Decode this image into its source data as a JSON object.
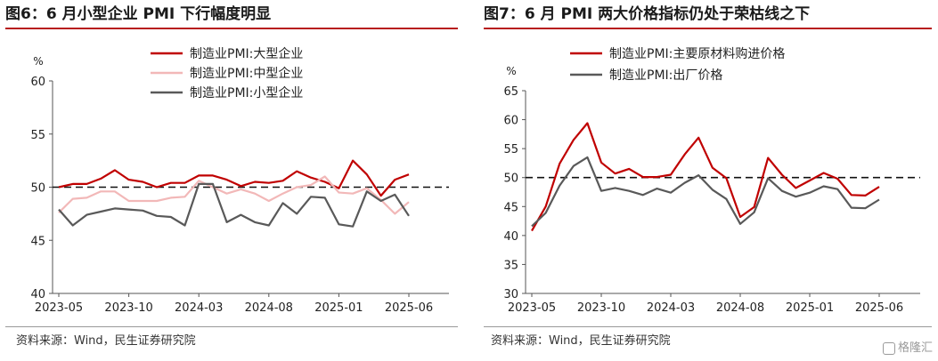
{
  "charts": [
    {
      "title": "图6：6 月小型企业 PMI 下行幅度明显",
      "source": "资料来源：Wind，民生证券研究院"
    },
    {
      "title": "图7：6 月 PMI 两大价格指标仍处于荣枯线之下",
      "source": "资料来源：Wind，民生证券研究院"
    }
  ],
  "watermark": "格隆汇",
  "colors": {
    "red": "#c00000",
    "pink": "#f2b8b8",
    "gray": "#595959",
    "title_rule": "#b71c1c"
  },
  "chart_data": [
    {
      "type": "line",
      "title": "6 月小型企业 PMI 下行幅度明显",
      "ylabel": "%",
      "ylim": [
        40,
        60
      ],
      "yticks": [
        40,
        45,
        50,
        55,
        60
      ],
      "xticklabels": [
        "2023-05",
        "2023-10",
        "2024-03",
        "2024-08",
        "2025-01",
        "2025-06"
      ],
      "x": [
        "2023-05",
        "2023-06",
        "2023-07",
        "2023-08",
        "2023-09",
        "2023-10",
        "2023-11",
        "2023-12",
        "2024-01",
        "2024-02",
        "2024-03",
        "2024-04",
        "2024-05",
        "2024-06",
        "2024-07",
        "2024-08",
        "2024-09",
        "2024-10",
        "2024-11",
        "2024-12",
        "2025-01",
        "2025-02",
        "2025-03",
        "2025-04",
        "2025-05",
        "2025-06"
      ],
      "reference_line": 50,
      "legend_position": "top",
      "series": [
        {
          "name": "制造业PMI:大型企业",
          "color": "#c00000",
          "values": [
            50.0,
            50.3,
            50.3,
            50.8,
            51.6,
            50.7,
            50.5,
            50.0,
            50.4,
            50.4,
            51.1,
            51.1,
            50.7,
            50.1,
            50.5,
            50.4,
            50.6,
            51.5,
            50.9,
            50.5,
            49.9,
            52.5,
            51.2,
            49.2,
            50.7,
            51.2
          ]
        },
        {
          "name": "制造业PMI:中型企业",
          "color": "#f2b8b8",
          "values": [
            47.6,
            48.9,
            49.0,
            49.6,
            49.6,
            48.7,
            48.7,
            48.7,
            49.0,
            49.1,
            50.6,
            50.0,
            49.4,
            49.8,
            49.4,
            48.7,
            49.4,
            50.0,
            50.2,
            51.0,
            49.5,
            49.4,
            49.9,
            48.8,
            47.5,
            48.6
          ]
        },
        {
          "name": "制造业PMI:小型企业",
          "color": "#595959",
          "values": [
            47.9,
            46.4,
            47.4,
            47.7,
            48.0,
            47.9,
            47.8,
            47.3,
            47.2,
            46.4,
            50.3,
            50.3,
            46.7,
            47.4,
            46.7,
            46.4,
            48.5,
            47.5,
            49.1,
            49.0,
            46.5,
            46.3,
            49.6,
            48.7,
            49.3,
            47.3
          ]
        }
      ]
    },
    {
      "type": "line",
      "title": "6 月 PMI 两大价格指标仍处于荣枯线之下",
      "ylabel": "%",
      "ylim": [
        30,
        65
      ],
      "yticks": [
        30,
        35,
        40,
        45,
        50,
        55,
        60,
        65
      ],
      "xticklabels": [
        "2023-05",
        "2023-10",
        "2024-03",
        "2024-08",
        "2025-01",
        "2025-06"
      ],
      "x": [
        "2023-05",
        "2023-06",
        "2023-07",
        "2023-08",
        "2023-09",
        "2023-10",
        "2023-11",
        "2023-12",
        "2024-01",
        "2024-02",
        "2024-03",
        "2024-04",
        "2024-05",
        "2024-06",
        "2024-07",
        "2024-08",
        "2024-09",
        "2024-10",
        "2024-11",
        "2024-12",
        "2025-01",
        "2025-02",
        "2025-03",
        "2025-04",
        "2025-05",
        "2025-06"
      ],
      "reference_line": 50,
      "legend_position": "top",
      "series": [
        {
          "name": "制造业PMI:主要原材料购进价格",
          "color": "#c00000",
          "values": [
            40.8,
            45.0,
            52.4,
            56.5,
            59.4,
            52.6,
            50.7,
            51.5,
            50.1,
            50.1,
            50.5,
            54.0,
            56.9,
            51.7,
            49.9,
            43.2,
            44.9,
            53.4,
            50.5,
            48.2,
            49.5,
            50.8,
            49.8,
            47.0,
            46.9,
            48.4
          ]
        },
        {
          "name": "制造业PMI:出厂价格",
          "color": "#595959",
          "values": [
            41.6,
            43.9,
            48.6,
            52.0,
            53.5,
            47.7,
            48.2,
            47.7,
            47.0,
            48.1,
            47.4,
            49.1,
            50.4,
            47.9,
            46.3,
            42.0,
            44.0,
            49.9,
            47.7,
            46.7,
            47.4,
            48.5,
            48.0,
            44.8,
            44.7,
            46.2
          ]
        }
      ]
    }
  ]
}
